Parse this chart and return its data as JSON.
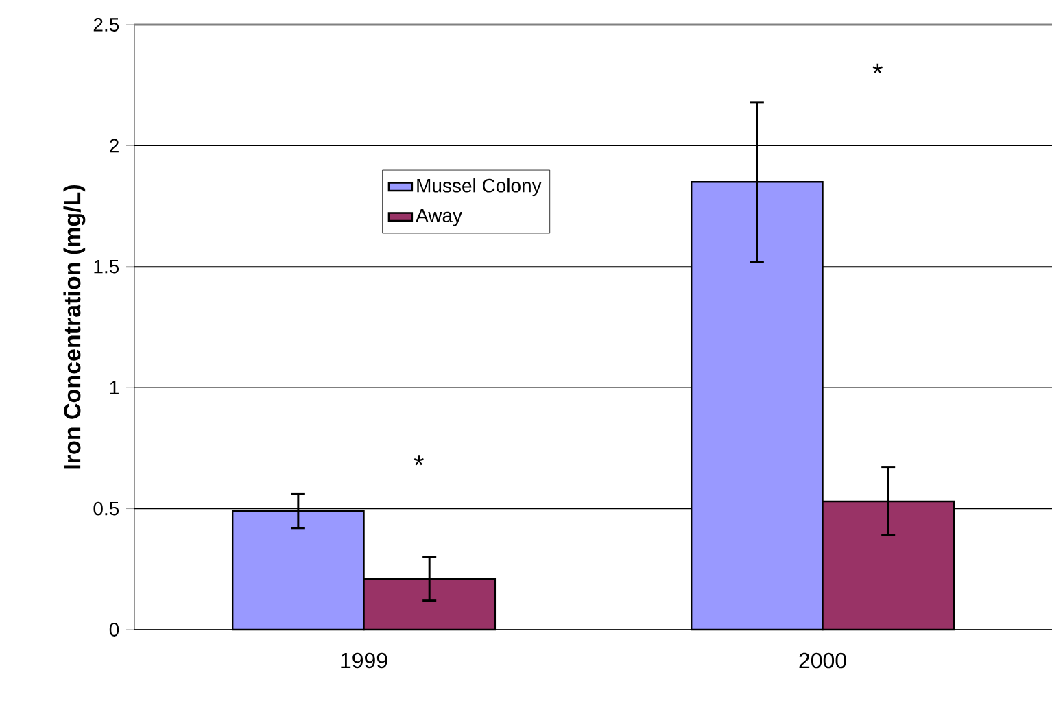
{
  "chart_data": {
    "type": "bar",
    "ylabel": "Iron Concentration (mg/L)",
    "categories": [
      "1999",
      "2000"
    ],
    "series": [
      {
        "name": "Mussel Colony",
        "color": "#9999ff",
        "values": [
          0.49,
          1.85
        ],
        "errors": [
          0.07,
          0.33
        ]
      },
      {
        "name": "Away",
        "color": "#993366",
        "values": [
          0.21,
          0.53
        ],
        "errors": [
          0.09,
          0.14
        ]
      }
    ],
    "ylim": [
      0,
      2.5
    ],
    "yticks": [
      0,
      0.5,
      1,
      1.5,
      2,
      2.5
    ],
    "grid": "y",
    "legend": "top left",
    "annotations": [
      "*",
      "*"
    ]
  }
}
